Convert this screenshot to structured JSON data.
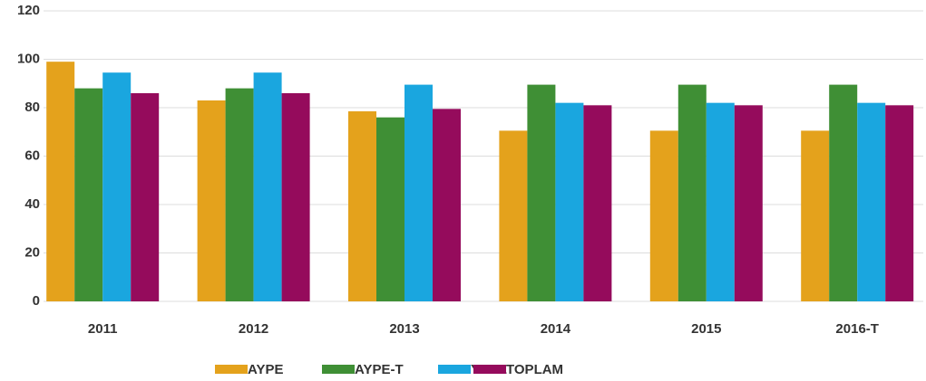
{
  "chart_data": {
    "type": "bar",
    "categories": [
      "2011",
      "2012",
      "2013",
      "2014",
      "2015",
      "2016-T"
    ],
    "series": [
      {
        "name": "AYPE",
        "color": "#e4a21c",
        "values": [
          99,
          83,
          78.5,
          70.5,
          70.5,
          70.5
        ]
      },
      {
        "name": "AYPE-T",
        "color": "#3f8f35",
        "values": [
          88,
          88,
          76,
          89.5,
          89.5,
          89.5
        ]
      },
      {
        "name": "YYPE",
        "color": "#1aa6df",
        "values": [
          94.5,
          94.5,
          89.5,
          82,
          82,
          82
        ]
      },
      {
        "name": "TOPLAM",
        "color": "#950b5c",
        "values": [
          86,
          86,
          79.5,
          81,
          81,
          81
        ]
      }
    ],
    "ylim": [
      0,
      120
    ],
    "yticks": [
      0,
      20,
      40,
      60,
      80,
      100,
      120
    ],
    "grid": true
  }
}
